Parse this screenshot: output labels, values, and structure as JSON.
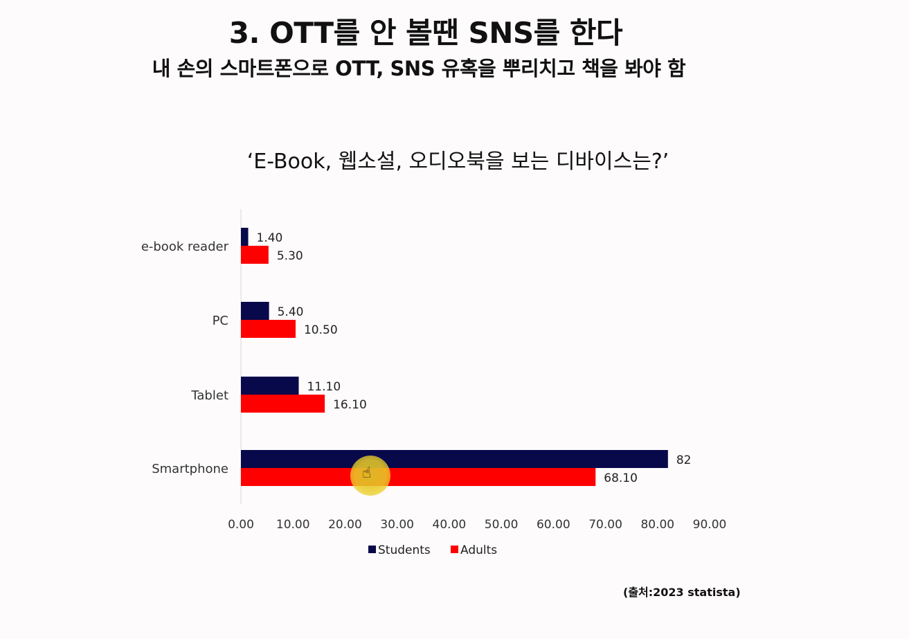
{
  "slide": {
    "title": "3. OTT를 안 볼땐 SNS를 한다",
    "subtitle": "내 손의 스마트폰으로 OTT, SNS 유혹을 뿌리치고 책을 봐야 함",
    "question": "‘E-Book, 웹소설, 오디오북을 보는 디바이스는?’",
    "source": "(출처:2023 statista)"
  },
  "chart_data": {
    "type": "bar",
    "orientation": "horizontal",
    "categories": [
      "e-book reader",
      "PC",
      "Tablet",
      "Smartphone"
    ],
    "series": [
      {
        "name": "Students",
        "color": "#07094b",
        "values": [
          1.4,
          5.4,
          11.1,
          82
        ],
        "labels": [
          "1.40",
          "5.40",
          "11.10",
          "82"
        ]
      },
      {
        "name": "Adults",
        "color": "#ff0000",
        "values": [
          5.3,
          10.5,
          16.1,
          68.1
        ],
        "labels": [
          "5.30",
          "10.50",
          "16.10",
          "68.10"
        ]
      }
    ],
    "xlim": [
      0,
      90
    ],
    "xticks": [
      "0.00",
      "10.00",
      "20.00",
      "30.00",
      "40.00",
      "50.00",
      "60.00",
      "70.00",
      "80.00",
      "90.00"
    ],
    "grid": false,
    "legend_position": "bottom"
  },
  "cursor": {
    "icon": "hand-pointer-icon",
    "highlight_color": "#e6c62a"
  }
}
